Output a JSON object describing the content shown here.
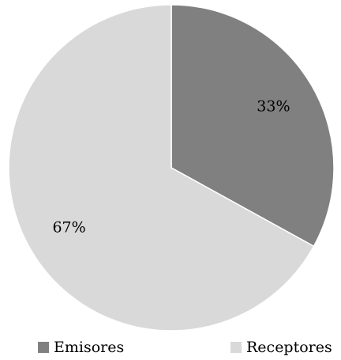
{
  "chart_data": {
    "type": "pie",
    "title": "",
    "legend_position": "bottom",
    "slices": [
      {
        "name": "Emisores",
        "value": 33,
        "label": "33%",
        "color": "#808080"
      },
      {
        "name": "Receptores",
        "value": 67,
        "label": "67%",
        "color": "#d9d9d9"
      }
    ]
  }
}
